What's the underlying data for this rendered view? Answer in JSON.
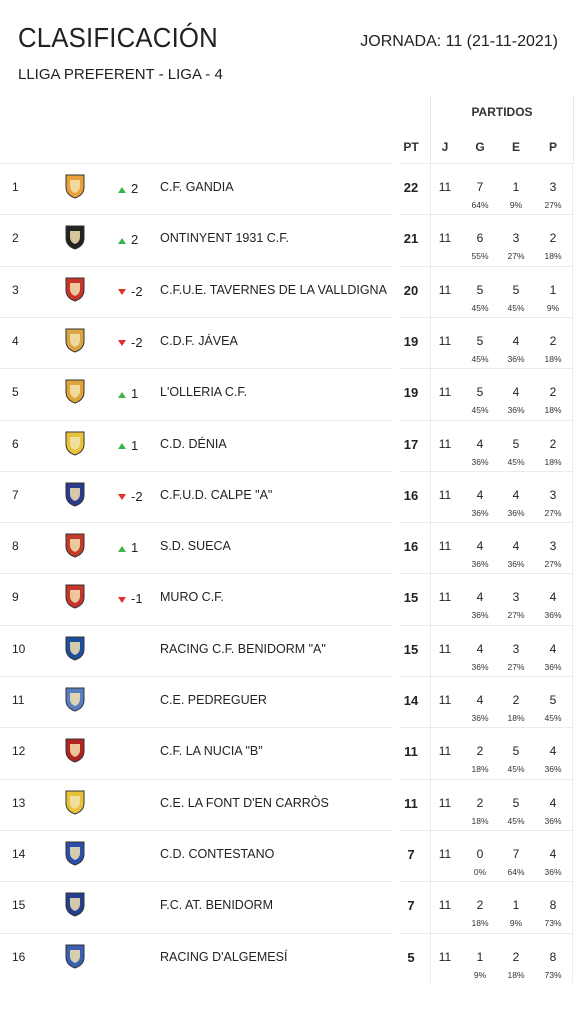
{
  "header": {
    "title": "CLASIFICACIÓN",
    "jornada": "JORNADA: 11 (21-11-2021)",
    "subtitle": "LLIGA PREFERENT - LIGA - 4"
  },
  "columns": {
    "partidos": "PARTIDOS",
    "pt": "PT",
    "j": "J",
    "g": "G",
    "e": "E",
    "p": "P"
  },
  "colors": {
    "up": "#3cb44b",
    "down": "#e0302a"
  },
  "rows": [
    {
      "pos": "1",
      "trend": "up",
      "change": "2",
      "team": "C.F. GANDIA",
      "pt": "22",
      "j": "11",
      "g": "7",
      "g_pct": "64%",
      "e": "1",
      "e_pct": "9%",
      "p": "3",
      "p_pct": "27%",
      "crest": "#e8a13a"
    },
    {
      "pos": "2",
      "trend": "up",
      "change": "2",
      "team": "ONTINYENT 1931 C.F.",
      "pt": "21",
      "j": "11",
      "g": "6",
      "g_pct": "55%",
      "e": "3",
      "e_pct": "27%",
      "p": "2",
      "p_pct": "18%",
      "crest": "#222222"
    },
    {
      "pos": "3",
      "trend": "down",
      "change": "-2",
      "team": "C.F.U.E. TAVERNES DE LA VALLDIGNA",
      "pt": "20",
      "j": "11",
      "g": "5",
      "g_pct": "45%",
      "e": "5",
      "e_pct": "45%",
      "p": "1",
      "p_pct": "9%",
      "crest": "#c8332b"
    },
    {
      "pos": "4",
      "trend": "down",
      "change": "-2",
      "team": "C.D.F. JÁVEA",
      "pt": "19",
      "j": "11",
      "g": "5",
      "g_pct": "45%",
      "e": "4",
      "e_pct": "36%",
      "p": "2",
      "p_pct": "18%",
      "crest": "#d9a441"
    },
    {
      "pos": "5",
      "trend": "up",
      "change": "1",
      "team": "L'OLLERIA C.F.",
      "pt": "19",
      "j": "11",
      "g": "5",
      "g_pct": "45%",
      "e": "4",
      "e_pct": "36%",
      "p": "2",
      "p_pct": "18%",
      "crest": "#e0a53a"
    },
    {
      "pos": "6",
      "trend": "up",
      "change": "1",
      "team": "C.D. DÉNIA",
      "pt": "17",
      "j": "11",
      "g": "4",
      "g_pct": "36%",
      "e": "5",
      "e_pct": "45%",
      "p": "2",
      "p_pct": "18%",
      "crest": "#e8c33a"
    },
    {
      "pos": "7",
      "trend": "down",
      "change": "-2",
      "team": "C.F.U.D. CALPE \"A\"",
      "pt": "16",
      "j": "11",
      "g": "4",
      "g_pct": "36%",
      "e": "4",
      "e_pct": "36%",
      "p": "3",
      "p_pct": "27%",
      "crest": "#2a3a8c"
    },
    {
      "pos": "8",
      "trend": "up",
      "change": "1",
      "team": "S.D. SUECA",
      "pt": "16",
      "j": "11",
      "g": "4",
      "g_pct": "36%",
      "e": "4",
      "e_pct": "36%",
      "p": "3",
      "p_pct": "27%",
      "crest": "#c43a2b"
    },
    {
      "pos": "9",
      "trend": "down",
      "change": "-1",
      "team": "MURO C.F.",
      "pt": "15",
      "j": "11",
      "g": "4",
      "g_pct": "36%",
      "e": "3",
      "e_pct": "27%",
      "p": "4",
      "p_pct": "36%",
      "crest": "#c8332b"
    },
    {
      "pos": "10",
      "trend": "none",
      "change": "",
      "team": "RACING C.F. BENIDORM \"A\"",
      "pt": "15",
      "j": "11",
      "g": "4",
      "g_pct": "36%",
      "e": "3",
      "e_pct": "27%",
      "p": "4",
      "p_pct": "36%",
      "crest": "#1f4f9c"
    },
    {
      "pos": "11",
      "trend": "none",
      "change": "",
      "team": "C.E. PEDREGUER",
      "pt": "14",
      "j": "11",
      "g": "4",
      "g_pct": "36%",
      "e": "2",
      "e_pct": "18%",
      "p": "5",
      "p_pct": "45%",
      "crest": "#5a7fc0"
    },
    {
      "pos": "12",
      "trend": "none",
      "change": "",
      "team": "C.F. LA NUCIA \"B\"",
      "pt": "11",
      "j": "11",
      "g": "2",
      "g_pct": "18%",
      "e": "5",
      "e_pct": "45%",
      "p": "4",
      "p_pct": "36%",
      "crest": "#b3231f"
    },
    {
      "pos": "13",
      "trend": "none",
      "change": "",
      "team": "C.E. LA FONT D'EN CARRÒS",
      "pt": "11",
      "j": "11",
      "g": "2",
      "g_pct": "18%",
      "e": "5",
      "e_pct": "45%",
      "p": "4",
      "p_pct": "36%",
      "crest": "#e8c33a"
    },
    {
      "pos": "14",
      "trend": "none",
      "change": "",
      "team": "C.D. CONTESTANO",
      "pt": "7",
      "j": "11",
      "g": "0",
      "g_pct": "0%",
      "e": "7",
      "e_pct": "64%",
      "p": "4",
      "p_pct": "36%",
      "crest": "#2b4fa8"
    },
    {
      "pos": "15",
      "trend": "none",
      "change": "",
      "team": "F.C. AT. BENIDORM",
      "pt": "7",
      "j": "11",
      "g": "2",
      "g_pct": "18%",
      "e": "1",
      "e_pct": "9%",
      "p": "8",
      "p_pct": "73%",
      "crest": "#233f8f"
    },
    {
      "pos": "16",
      "trend": "none",
      "change": "",
      "team": "RACING D'ALGEMESÍ",
      "pt": "5",
      "j": "11",
      "g": "1",
      "g_pct": "9%",
      "e": "2",
      "e_pct": "18%",
      "p": "8",
      "p_pct": "73%",
      "crest": "#3a5fb0"
    }
  ]
}
